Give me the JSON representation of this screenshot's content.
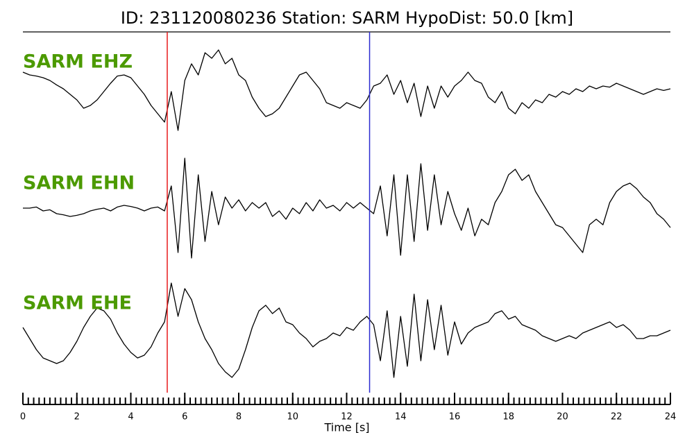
{
  "chart_data": {
    "type": "line",
    "title": "ID: 231120080236   Station: SARM   HypoDist:    50.0 [km]",
    "xlabel": "Time [s]",
    "xlim": [
      0,
      24
    ],
    "xticks": [
      0,
      2,
      4,
      6,
      8,
      10,
      12,
      14,
      16,
      18,
      20,
      22,
      24
    ],
    "minor_tick_step": 0.2,
    "ylim": [
      -1,
      1
    ],
    "label_color": "#4c9a00",
    "markers": [
      {
        "x": 5.35,
        "color": "#e8191a"
      },
      {
        "x": 12.85,
        "color": "#2b2bd0"
      }
    ],
    "x": [
      0,
      0.25,
      0.5,
      0.75,
      1,
      1.25,
      1.5,
      1.75,
      2,
      2.25,
      2.5,
      2.75,
      3,
      3.25,
      3.5,
      3.75,
      4,
      4.25,
      4.5,
      4.75,
      5,
      5.25,
      5.5,
      5.75,
      6,
      6.25,
      6.5,
      6.75,
      7,
      7.25,
      7.5,
      7.75,
      8,
      8.25,
      8.5,
      8.75,
      9,
      9.25,
      9.5,
      9.75,
      10,
      10.25,
      10.5,
      10.75,
      11,
      11.25,
      11.5,
      11.75,
      12,
      12.25,
      12.5,
      12.75,
      13,
      13.25,
      13.5,
      13.75,
      14,
      14.25,
      14.5,
      14.75,
      15,
      15.25,
      15.5,
      15.75,
      16,
      16.25,
      16.5,
      16.75,
      17,
      17.25,
      17.5,
      17.75,
      18,
      18.25,
      18.5,
      18.75,
      19,
      19.25,
      19.5,
      19.75,
      20,
      20.25,
      20.5,
      20.75,
      21,
      21.25,
      21.5,
      21.75,
      22,
      22.25,
      22.5,
      22.75,
      23,
      23.25,
      23.5,
      23.75,
      24
    ],
    "series": [
      {
        "name": "SARM EHZ",
        "color": "#000000",
        "values": [
          0.45,
          0.4,
          0.38,
          0.35,
          0.3,
          0.22,
          0.15,
          0.05,
          -0.05,
          -0.2,
          -0.15,
          -0.05,
          0.1,
          0.25,
          0.38,
          0.4,
          0.35,
          0.2,
          0.05,
          -0.15,
          -0.3,
          -0.45,
          0.1,
          -0.6,
          0.3,
          0.6,
          0.4,
          0.8,
          0.7,
          0.85,
          0.6,
          0.7,
          0.4,
          0.3,
          0.0,
          -0.2,
          -0.35,
          -0.3,
          -0.2,
          0.0,
          0.2,
          0.4,
          0.45,
          0.3,
          0.15,
          -0.1,
          -0.15,
          -0.2,
          -0.1,
          -0.15,
          -0.2,
          -0.05,
          0.2,
          0.25,
          0.4,
          0.05,
          0.3,
          -0.1,
          0.25,
          -0.35,
          0.2,
          -0.2,
          0.2,
          0.0,
          0.2,
          0.3,
          0.45,
          0.3,
          0.25,
          0.0,
          -0.1,
          0.1,
          -0.2,
          -0.3,
          -0.1,
          -0.2,
          -0.05,
          -0.1,
          0.05,
          0.0,
          0.1,
          0.05,
          0.15,
          0.1,
          0.2,
          0.15,
          0.2,
          0.18,
          0.25,
          0.2,
          0.15,
          0.1,
          0.05,
          0.1,
          0.15,
          0.12,
          0.15
        ]
      },
      {
        "name": "SARM EHN",
        "color": "#000000",
        "values": [
          0,
          0.0,
          0.02,
          -0.05,
          -0.03,
          -0.1,
          -0.12,
          -0.15,
          -0.13,
          -0.1,
          -0.05,
          -0.02,
          0.0,
          -0.05,
          0.02,
          0.05,
          0.03,
          0.0,
          -0.05,
          0.0,
          0.02,
          -0.05,
          0.4,
          -0.8,
          0.9,
          -0.9,
          0.6,
          -0.6,
          0.3,
          -0.3,
          0.2,
          0.0,
          0.15,
          -0.05,
          0.1,
          0.0,
          0.1,
          -0.15,
          -0.05,
          -0.2,
          0.0,
          -0.1,
          0.1,
          -0.05,
          0.15,
          0.0,
          0.05,
          -0.05,
          0.1,
          0.0,
          0.1,
          0.0,
          -0.1,
          0.4,
          -0.5,
          0.6,
          -0.85,
          0.6,
          -0.6,
          0.8,
          -0.4,
          0.6,
          -0.3,
          0.3,
          -0.1,
          -0.4,
          0.0,
          -0.5,
          -0.2,
          -0.3,
          0.1,
          0.3,
          0.6,
          0.7,
          0.5,
          0.6,
          0.3,
          0.1,
          -0.1,
          -0.3,
          -0.35,
          -0.5,
          -0.65,
          -0.8,
          -0.3,
          -0.2,
          -0.3,
          0.1,
          0.3,
          0.4,
          0.45,
          0.35,
          0.2,
          0.1,
          -0.1,
          -0.2,
          -0.35
        ]
      },
      {
        "name": "SARM EHE",
        "color": "#000000",
        "values": [
          0.1,
          -0.1,
          -0.3,
          -0.45,
          -0.5,
          -0.55,
          -0.5,
          -0.35,
          -0.15,
          0.1,
          0.3,
          0.45,
          0.4,
          0.25,
          0.0,
          -0.2,
          -0.35,
          -0.45,
          -0.4,
          -0.25,
          0.0,
          0.2,
          0.9,
          0.3,
          0.8,
          0.6,
          0.2,
          -0.1,
          -0.3,
          -0.55,
          -0.7,
          -0.8,
          -0.65,
          -0.3,
          0.1,
          0.4,
          0.5,
          0.35,
          0.45,
          0.2,
          0.15,
          0.0,
          -0.1,
          -0.25,
          -0.15,
          -0.1,
          0.0,
          -0.05,
          0.1,
          0.05,
          0.2,
          0.3,
          0.15,
          -0.5,
          0.4,
          -0.8,
          0.3,
          -0.6,
          0.7,
          -0.5,
          0.6,
          -0.3,
          0.5,
          -0.4,
          0.2,
          -0.2,
          0.0,
          0.1,
          0.15,
          0.2,
          0.35,
          0.4,
          0.25,
          0.3,
          0.15,
          0.1,
          0.05,
          -0.05,
          -0.1,
          -0.15,
          -0.1,
          -0.05,
          -0.1,
          0.0,
          0.05,
          0.1,
          0.15,
          0.2,
          0.1,
          0.15,
          0.05,
          -0.1,
          -0.1,
          -0.05,
          -0.05,
          0.0,
          0.05
        ]
      }
    ]
  }
}
